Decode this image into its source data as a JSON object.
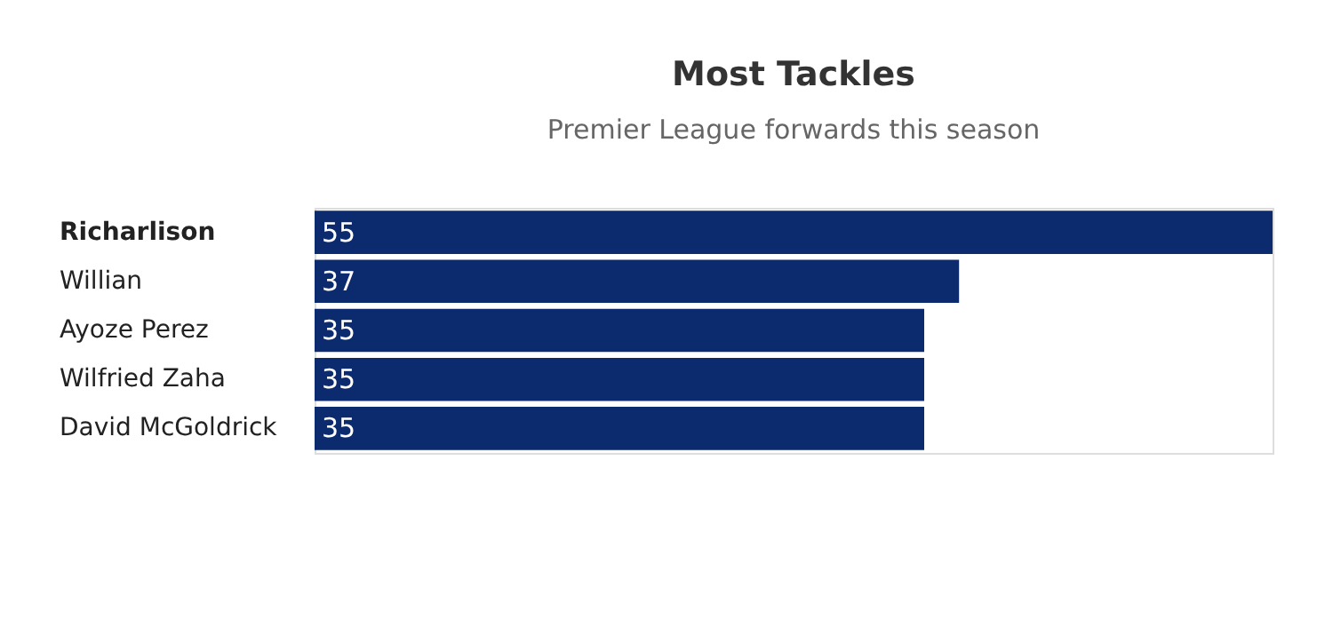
{
  "chart_data": {
    "type": "bar",
    "orientation": "horizontal",
    "title": "Most Tackles",
    "subtitle": "Premier League forwards this season",
    "categories": [
      "Richarlison",
      "Willian",
      "Ayoze Perez",
      "Wilfried Zaha",
      "David McGoldrick"
    ],
    "values": [
      55,
      37,
      35,
      35,
      35
    ],
    "color": "#0c2a6e",
    "data_labels": true
  }
}
